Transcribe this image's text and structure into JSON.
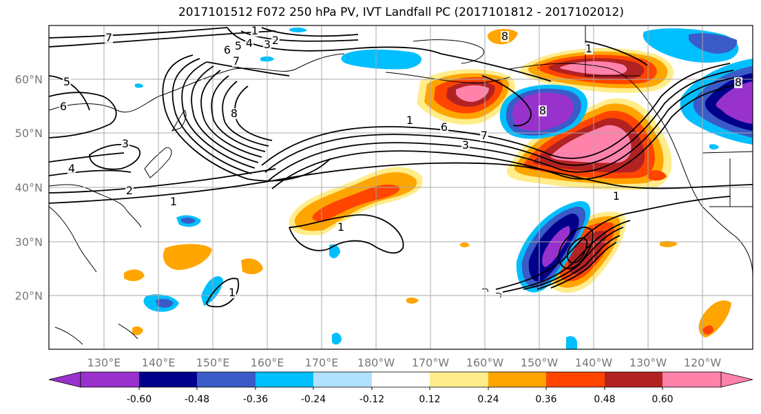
{
  "title": "2017101512 F072 250 hPa PV, IVT Landfall PC (2017101812 - 2017102012)",
  "lon_labels": [
    "130°E",
    "140°E",
    "150°E",
    "160°E",
    "170°E",
    "180°W",
    "170°W",
    "160°W",
    "150°W",
    "140°W",
    "130°W",
    "120°W"
  ],
  "lat_labels": [
    "60°N",
    "50°N",
    "40°N",
    "30°N",
    "20°N"
  ],
  "colorbar": {
    "colors": [
      "#9932cc",
      "#00008b",
      "#3a5bc8",
      "#00bfff",
      "#b0e2ff",
      "#ffffff",
      "#ffec8b",
      "#ffa500",
      "#ff4500",
      "#b22222",
      "#ff82ab"
    ],
    "tick_labels": [
      "-0.60",
      "-0.48",
      "-0.36",
      "-0.24",
      "-0.12",
      "0.12",
      "0.24",
      "0.36",
      "0.48",
      "0.60"
    ],
    "bounds": [
      -0.6,
      -0.48,
      -0.36,
      -0.24,
      -0.12,
      0.12,
      0.24,
      0.36,
      0.48,
      0.6
    ]
  },
  "contour_labels": [
    "7",
    "1",
    "2",
    "6",
    "5",
    "4",
    "3",
    "7",
    "5",
    "6",
    "8",
    "3",
    "4",
    "2",
    "1",
    "1",
    "8",
    "1",
    "6",
    "7",
    "3",
    "1",
    "1",
    "8",
    "8",
    "1"
  ]
}
